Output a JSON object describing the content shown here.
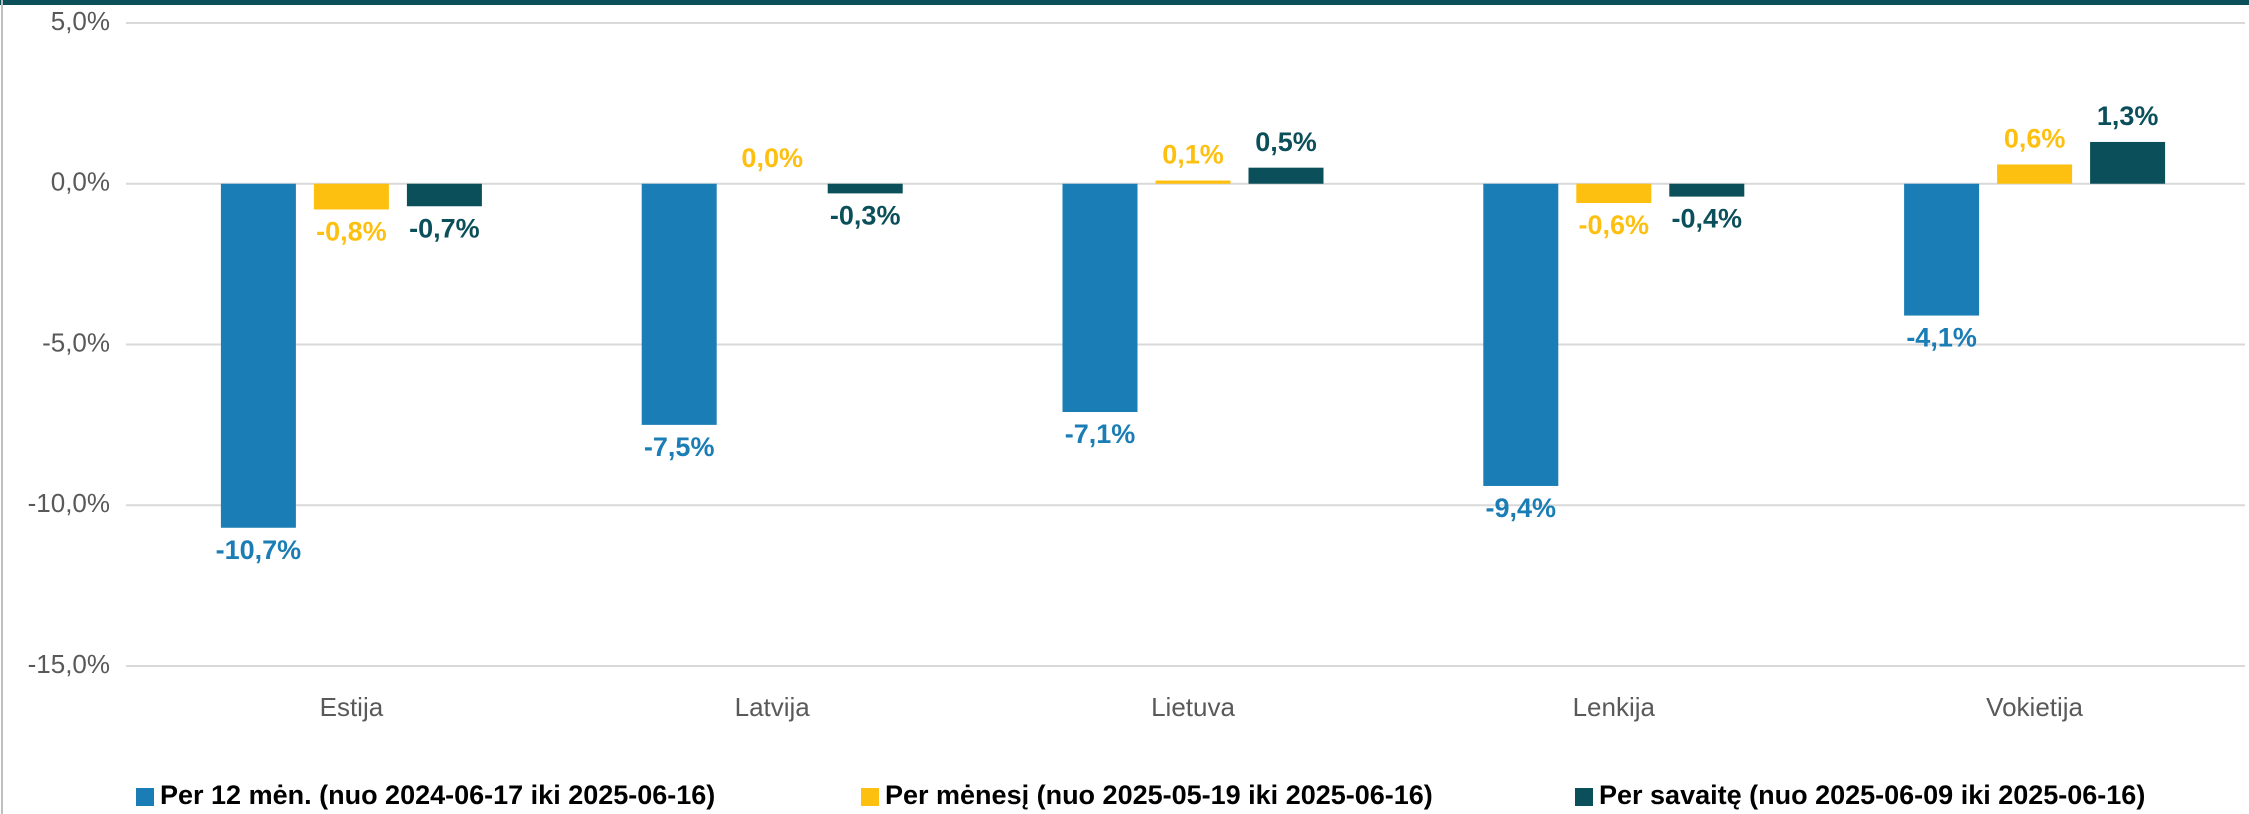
{
  "chart_data": {
    "type": "bar",
    "categories": [
      "Estija",
      "Latvija",
      "Lietuva",
      "Lenkija",
      "Vokietija"
    ],
    "series": [
      {
        "name": "Per 12 mėn. (nuo 2024-06-17 iki 2025-06-16)",
        "color": "#1a7db5",
        "values": [
          -10.7,
          -7.5,
          -7.1,
          -9.4,
          -4.1
        ],
        "value_labels": [
          "-10,7%",
          "-7,5%",
          "-7,1%",
          "-9,4%",
          "-4,1%"
        ]
      },
      {
        "name": "Per mėnesį (nuo 2025-05-19 iki 2025-06-16)",
        "color": "#fdc010",
        "values": [
          -0.8,
          0.0,
          0.1,
          -0.6,
          0.6
        ],
        "value_labels": [
          "-0,8%",
          "0,0%",
          "0,1%",
          "-0,6%",
          "0,6%"
        ]
      },
      {
        "name": "Per savaitę (nuo 2025-06-09 iki 2025-06-16)",
        "color": "#0b4f5a",
        "values": [
          -0.7,
          -0.3,
          0.5,
          -0.4,
          1.3
        ],
        "value_labels": [
          "-0,7%",
          "-0,3%",
          "0,5%",
          "-0,4%",
          "1,3%"
        ]
      }
    ],
    "ylim": [
      -15,
      5
    ],
    "yticks": [
      {
        "value": -15,
        "label": "-15,0%"
      },
      {
        "value": -10,
        "label": "-10,0%"
      },
      {
        "value": -5,
        "label": "-5,0%"
      },
      {
        "value": 0,
        "label": "0,0%"
      },
      {
        "value": 5,
        "label": "5,0%"
      }
    ],
    "grid": true,
    "legend": "bottom"
  }
}
